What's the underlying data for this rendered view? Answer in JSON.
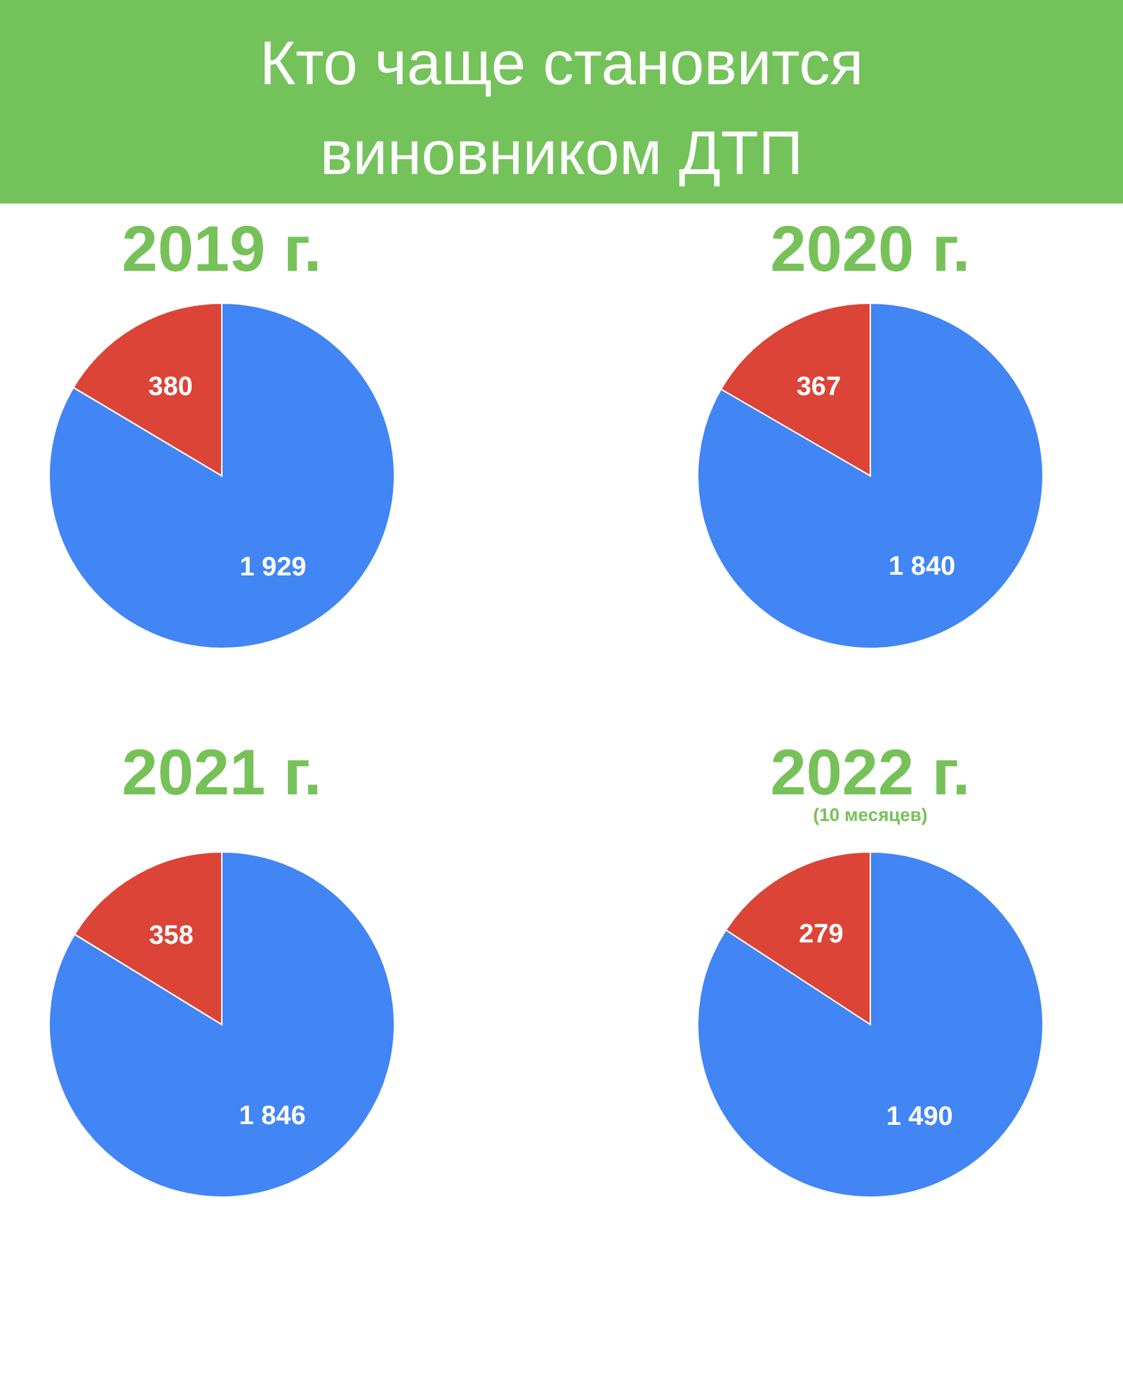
{
  "chart_data": [
    {
      "type": "other",
      "title": "Кто чаще становится виновником ДТП"
    },
    {
      "type": "pie",
      "title": "2019 г.",
      "categories": [
        null,
        null
      ],
      "values": [
        1929,
        380
      ],
      "colors": [
        "#4285f4",
        "#db4437"
      ],
      "value_labels": [
        "1 929",
        "380"
      ]
    },
    {
      "type": "pie",
      "title": "2020 г.",
      "categories": [
        null,
        null
      ],
      "values": [
        1840,
        367
      ],
      "colors": [
        "#4285f4",
        "#db4437"
      ],
      "value_labels": [
        "1 840",
        "367"
      ]
    },
    {
      "type": "pie",
      "title": "2021 г.",
      "categories": [
        null,
        null
      ],
      "values": [
        1846,
        358
      ],
      "colors": [
        "#4285f4",
        "#db4437"
      ],
      "value_labels": [
        "1 846",
        "358"
      ]
    },
    {
      "type": "pie",
      "title": "2022 г.",
      "subtitle": "(10 месяцев)",
      "categories": [
        null,
        null
      ],
      "values": [
        1490,
        279
      ],
      "colors": [
        "#4285f4",
        "#db4437"
      ],
      "value_labels": [
        "1 490",
        "279"
      ]
    }
  ]
}
